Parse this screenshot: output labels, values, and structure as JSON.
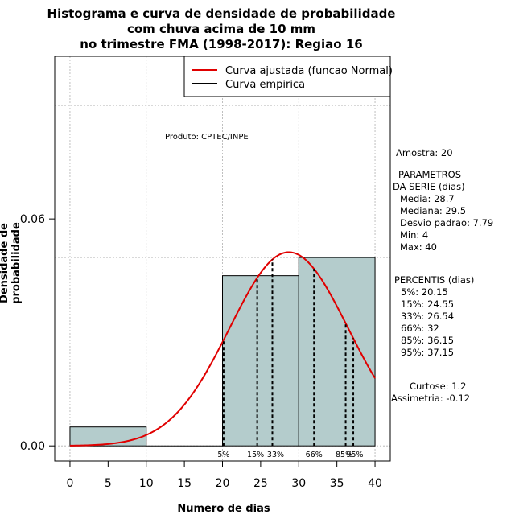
{
  "chart_data": {
    "type": "histogram",
    "title_lines": [
      "Histograma e curva de densidade de probabilidade",
      "com chuva acima de 10 mm",
      "no trimestre FMA (1998-2017): Regiao 16"
    ],
    "xlabel": "Numero de dias",
    "ylabel": "Densidade de probabilidade",
    "xlim": [
      -2,
      42
    ],
    "ylim": [
      -0.004,
      0.103
    ],
    "x_ticks": [
      0,
      5,
      10,
      15,
      20,
      25,
      30,
      35,
      40
    ],
    "y_ticks": [
      0.0,
      0.06
    ],
    "y_tick_labels": [
      "0.00",
      "0.06"
    ],
    "grid": true,
    "bins": [
      {
        "from": 0,
        "to": 10,
        "density": 0.005
      },
      {
        "from": 10,
        "to": 20,
        "density": 0.0
      },
      {
        "from": 20,
        "to": 30,
        "density": 0.045
      },
      {
        "from": 30,
        "to": 40,
        "density": 0.0498
      }
    ],
    "normal_fit": {
      "mean": 28.7,
      "sd": 7.79,
      "x_range": [
        0,
        40
      ]
    },
    "percentile_lines": [
      {
        "label": "5%",
        "x": 20.15
      },
      {
        "label": "15%",
        "x": 24.55
      },
      {
        "label": "33%",
        "x": 26.54
      },
      {
        "label": "66%",
        "x": 32
      },
      {
        "label": "85%",
        "x": 36.15
      },
      {
        "label": "95%",
        "x": 37.15
      }
    ],
    "legend": {
      "position": "top-right",
      "entries": [
        {
          "label": "Curva ajustada (funcao Normal)",
          "color": "#e00000"
        },
        {
          "label": "Curva empirica",
          "color": "#000000"
        }
      ]
    },
    "annotation": "Produto: CPTEC/INPE",
    "colors": {
      "bar_fill": "#b4cccc",
      "curve": "#e00000",
      "grid": "#b0b0b0"
    }
  },
  "sidebar": {
    "amostra": "Amostra: 20",
    "parametros": [
      "PARAMETROS",
      "DA SERIE (dias)",
      "Media: 28.7",
      "Mediana: 29.5",
      "Desvio padrao: 7.79",
      "Min: 4",
      "Max: 40"
    ],
    "percentis": [
      "PERCENTIS (dias)",
      "5%: 20.15",
      "15%: 24.55",
      "33%: 26.54",
      "66%: 32",
      "85%: 36.15",
      "95%: 37.15"
    ],
    "curtose": "Curtose: 1.2",
    "assimetria": "Assimetria: -0.12"
  }
}
